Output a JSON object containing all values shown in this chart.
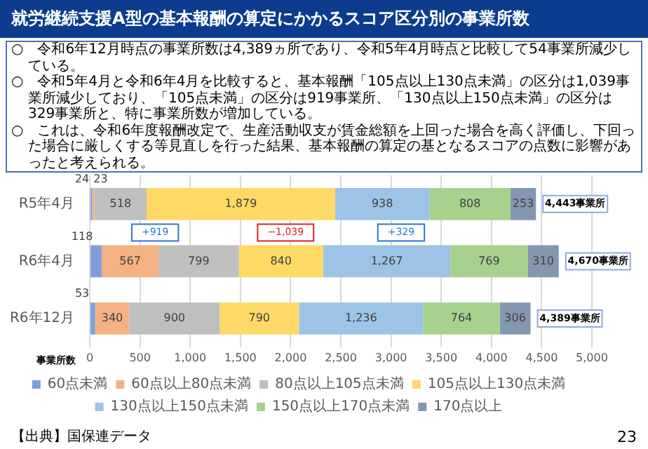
{
  "chart_data": {
    "type": "bar",
    "orientation": "horizontal",
    "stacked": true,
    "title": "就労継続支援A型の基本報酬の算定にかかるスコア区分別の事業所数",
    "categories": [
      "R5年4月",
      "R6年4月",
      "R6年12月"
    ],
    "series": [
      {
        "name": "60点未満",
        "color": "#7f9fdb",
        "values": [
          24,
          118,
          53
        ],
        "value_labels": [
          "24",
          "118",
          "53"
        ]
      },
      {
        "name": "60点以上80点未満",
        "color": "#f4b183",
        "values": [
          23,
          567,
          340
        ],
        "value_labels": [
          "23",
          "567",
          "340"
        ]
      },
      {
        "name": "80点以上105点未満",
        "color": "#bfbfbf",
        "values": [
          518,
          799,
          900
        ],
        "value_labels": [
          "518",
          "799",
          "900"
        ]
      },
      {
        "name": "105点以上130点未満",
        "color": "#ffd966",
        "values": [
          1879,
          840,
          790
        ],
        "value_labels": [
          "1,879",
          "840",
          "790"
        ]
      },
      {
        "name": "130点以上150点未満",
        "color": "#9dc3e6",
        "values": [
          938,
          1267,
          1236
        ],
        "value_labels": [
          "938",
          "1,267",
          "1,236"
        ]
      },
      {
        "name": "150点以上170点未満",
        "color": "#a9d18e",
        "values": [
          808,
          769,
          764
        ],
        "value_labels": [
          "808",
          "769",
          "764"
        ]
      },
      {
        "name": "170点以上",
        "color": "#8497b0",
        "values": [
          253,
          310,
          306
        ],
        "value_labels": [
          "253",
          "310",
          "306"
        ]
      }
    ],
    "xlim": [
      0,
      5000
    ],
    "xticks": [
      0,
      500,
      {
        "value": 1000,
        "label": "1,000"
      },
      {
        "value": 1500,
        "label": "1,500"
      },
      {
        "value": 2000,
        "label": "2,000"
      },
      {
        "value": 2500,
        "label": "2,500"
      },
      {
        "value": 3000,
        "label": "3,000"
      },
      {
        "value": 3500,
        "label": "3,500"
      },
      {
        "value": 4000,
        "label": "4,000"
      },
      {
        "value": 4500,
        "label": "4,500"
      },
      {
        "value": 5000,
        "label": "5,000"
      }
    ],
    "xlabel": "事業所数",
    "grid": "x",
    "legend": "bottom",
    "totals": [
      "4,443事業所",
      "4,670事業所",
      "4,389事業所"
    ],
    "annotations": [
      "○　令和6年12月時点の事業所数は4,389ヵ所であり、令和5年4月時点と比較して54事業所減少している。",
      "○　令和5年4月と令和6年4月を比較すると、基本報酬「105点以上130点未満」の区分は1,039事業所減少しており、「105点未満」の区分は919事業所、「130点以上150点未満」の区分は329事業所と、特に事業所数が増加している。",
      "○　これは、令和6年度報酬改定で、生産活動収支が賃金総額を上回った場合を高く評価し、下回った場合に厳しくする等見直しを行った結果、基本報酬の算定の基となるスコアの点数に影響があったと考えられる。",
      {
        "text": "+919",
        "x": 650
      },
      {
        "text": "−1,039",
        "x": 1950
      },
      {
        "text": "+329",
        "x": 3100
      },
      "【出典】国保連データ",
      "23"
    ]
  }
}
